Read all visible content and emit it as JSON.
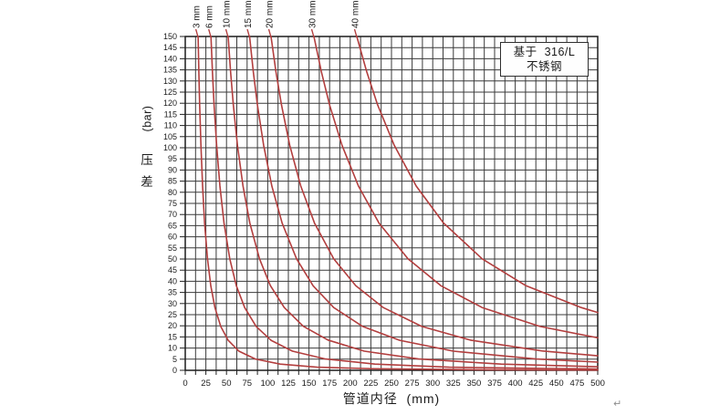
{
  "legend": {
    "line1": "基于  316/L",
    "line2": "不锈钢"
  },
  "axes": {
    "x": {
      "title": "管道内径  (mm)",
      "min": 0,
      "max": 500,
      "label_step": 25,
      "grid_step": 12.5
    },
    "y": {
      "unit": "(bar)",
      "char1": "压",
      "char2": "差",
      "min": 0,
      "max": 150,
      "label_step": 5,
      "grid_step": 5
    }
  },
  "artifacts": {
    "pilcrow": "↵"
  },
  "colors": {
    "curve": "#b23e3e",
    "grid": "#3a3a3a",
    "border": "#1c1c1c",
    "tick": "#222222",
    "text": "#1a1a1a"
  },
  "chart_data": {
    "type": "line",
    "title": "",
    "xlabel": "管道内径 (mm)",
    "ylabel": "压差 (bar)",
    "xlim": [
      0,
      500
    ],
    "ylim": [
      0,
      150
    ],
    "grid": true,
    "x_grid_step": 12.5,
    "y_grid_step": 5,
    "legend_note": "基于 316/L 不锈钢",
    "x_tick_labels": [
      "0",
      "25",
      "50",
      "75",
      "100",
      "125",
      "150",
      "175",
      "200",
      "225",
      "250",
      "275",
      "300",
      "325",
      "350",
      "375",
      "400",
      "425",
      "450",
      "475",
      "500"
    ],
    "y_tick_labels": [
      "0",
      "5",
      "10",
      "15",
      "20",
      "25",
      "30",
      "35",
      "40",
      "45",
      "50",
      "55",
      "60",
      "65",
      "70",
      "75",
      "80",
      "85",
      "90",
      "95",
      "100",
      "105",
      "110",
      "115",
      "120",
      "125",
      "130",
      "135",
      "140",
      "145",
      "150"
    ],
    "series": [
      {
        "name": "3 mm",
        "thickness_mm": 3,
        "points": [
          [
            15.6,
            150
          ],
          [
            16.5,
            134.1
          ],
          [
            17.5,
            119.2
          ],
          [
            19,
            101.1
          ],
          [
            21,
            82.8
          ],
          [
            23.5,
            66.1
          ],
          [
            27,
            50.1
          ],
          [
            31,
            38.0
          ],
          [
            36,
            28.2
          ],
          [
            43,
            19.7
          ],
          [
            52,
            13.5
          ],
          [
            65,
            8.6
          ],
          [
            85,
            5.1
          ],
          [
            115,
            2.8
          ],
          [
            160,
            1.4
          ],
          [
            230,
            0.7
          ],
          [
            350,
            0.3
          ],
          [
            500,
            0.1
          ]
        ]
      },
      {
        "name": "6 mm",
        "thickness_mm": 6,
        "points": [
          [
            31.2,
            150
          ],
          [
            33,
            134.1
          ],
          [
            35,
            119.2
          ],
          [
            38,
            101.1
          ],
          [
            42,
            82.8
          ],
          [
            47,
            66.1
          ],
          [
            54,
            50.1
          ],
          [
            62,
            38.0
          ],
          [
            72,
            28.2
          ],
          [
            86,
            19.7
          ],
          [
            104,
            13.5
          ],
          [
            130,
            8.6
          ],
          [
            170,
            5.1
          ],
          [
            230,
            2.8
          ],
          [
            320,
            1.4
          ],
          [
            440,
            0.8
          ],
          [
            500,
            0.6
          ]
        ]
      },
      {
        "name": "10 mm",
        "thickness_mm": 10,
        "points": [
          [
            52,
            150
          ],
          [
            55,
            134.1
          ],
          [
            58.3,
            119.2
          ],
          [
            63.3,
            101.1
          ],
          [
            70,
            82.8
          ],
          [
            78.3,
            66.1
          ],
          [
            90,
            50.1
          ],
          [
            103,
            38.2
          ],
          [
            120,
            28.2
          ],
          [
            143,
            19.8
          ],
          [
            173,
            13.6
          ],
          [
            217,
            8.6
          ],
          [
            283,
            5.1
          ],
          [
            383,
            2.8
          ],
          [
            500,
            1.6
          ]
        ]
      },
      {
        "name": "15 mm",
        "thickness_mm": 15,
        "points": [
          [
            78,
            150
          ],
          [
            82.5,
            134.1
          ],
          [
            87.5,
            119.2
          ],
          [
            95,
            101.1
          ],
          [
            105,
            82.8
          ],
          [
            117.5,
            66.1
          ],
          [
            135,
            50.1
          ],
          [
            155,
            38.0
          ],
          [
            180,
            28.2
          ],
          [
            215,
            19.7
          ],
          [
            260,
            13.5
          ],
          [
            325,
            8.6
          ],
          [
            425,
            5.1
          ],
          [
            500,
            3.7
          ]
        ]
      },
      {
        "name": "20 mm",
        "thickness_mm": 20,
        "points": [
          [
            104,
            150
          ],
          [
            110,
            134.1
          ],
          [
            116.7,
            119.2
          ],
          [
            126.7,
            101.1
          ],
          [
            140,
            82.8
          ],
          [
            156.7,
            66.1
          ],
          [
            180,
            50.1
          ],
          [
            206.7,
            38.0
          ],
          [
            240,
            28.2
          ],
          [
            286.7,
            19.7
          ],
          [
            346.7,
            13.5
          ],
          [
            433,
            8.7
          ],
          [
            500,
            6.5
          ]
        ]
      },
      {
        "name": "30 mm",
        "thickness_mm": 30,
        "points": [
          [
            156,
            150
          ],
          [
            165,
            134.1
          ],
          [
            175,
            119.2
          ],
          [
            190,
            101.1
          ],
          [
            210,
            82.8
          ],
          [
            235,
            66.1
          ],
          [
            270,
            50.1
          ],
          [
            310,
            38.0
          ],
          [
            360,
            28.2
          ],
          [
            430,
            19.7
          ],
          [
            500,
            14.6
          ]
        ]
      },
      {
        "name": "40 mm",
        "thickness_mm": 40,
        "points": [
          [
            208,
            150
          ],
          [
            220,
            134.1
          ],
          [
            233,
            119.5
          ],
          [
            253,
            101.4
          ],
          [
            280,
            82.8
          ],
          [
            313,
            66.2
          ],
          [
            360,
            50.1
          ],
          [
            413,
            38.0
          ],
          [
            480,
            28.2
          ],
          [
            500,
            26.0
          ]
        ]
      }
    ]
  }
}
